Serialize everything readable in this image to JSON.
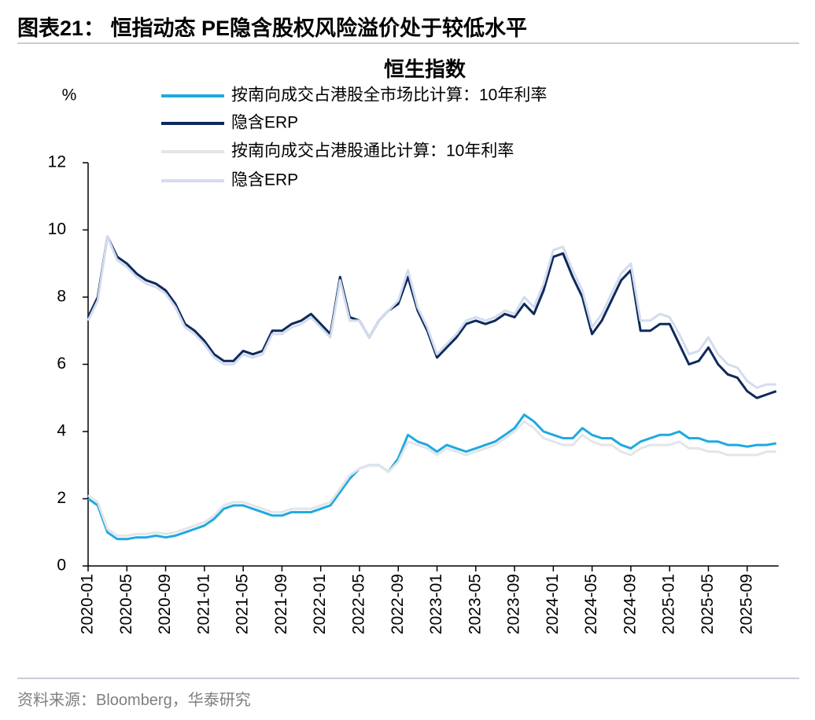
{
  "title": "图表21：  恒指动态 PE隐含股权风险溢价处于较低水平",
  "source": "资料来源：Bloomberg，华泰研究",
  "chart_data": {
    "type": "line",
    "title": "恒生指数",
    "y_label": "%",
    "x": [
      "2020-01",
      "2020-02",
      "2020-03",
      "2020-04",
      "2020-05",
      "2020-06",
      "2020-07",
      "2020-08",
      "2020-09",
      "2020-10",
      "2020-11",
      "2020-12",
      "2021-01",
      "2021-02",
      "2021-03",
      "2021-04",
      "2021-05",
      "2021-06",
      "2021-07",
      "2021-08",
      "2021-09",
      "2021-10",
      "2021-11",
      "2021-12",
      "2022-01",
      "2022-02",
      "2022-03",
      "2022-04",
      "2022-05",
      "2022-06",
      "2022-07",
      "2022-08",
      "2022-09",
      "2022-10",
      "2022-11",
      "2022-12",
      "2023-01",
      "2023-02",
      "2023-03",
      "2023-04",
      "2023-05",
      "2023-06",
      "2023-07",
      "2023-08",
      "2023-09",
      "2023-10",
      "2023-11",
      "2023-12",
      "2024-01",
      "2024-02",
      "2024-03",
      "2024-04",
      "2024-05",
      "2024-06",
      "2024-07",
      "2024-08",
      "2024-09",
      "2024-10",
      "2024-11",
      "2024-12",
      "2025-01",
      "2025-02",
      "2025-03",
      "2025-04",
      "2025-05",
      "2025-06",
      "2025-07",
      "2025-08",
      "2025-09",
      "2025-10",
      "2025-11",
      "2025-12"
    ],
    "xticks": [
      "2020-01",
      "2020-05",
      "2020-09",
      "2021-01",
      "2021-05",
      "2021-09",
      "2022-01",
      "2022-05",
      "2022-09",
      "2023-01",
      "2023-05",
      "2023-09",
      "2024-01",
      "2024-05",
      "2024-09",
      "2025-01",
      "2025-05",
      "2025-09"
    ],
    "ylim": [
      0,
      12
    ],
    "yticks": [
      0,
      2,
      4,
      6,
      8,
      10,
      12
    ],
    "grid": false,
    "series": [
      {
        "name": "按南向成交占港股全市场比计算：10年利率",
        "color": "#1fa9e1",
        "values": [
          2.0,
          1.8,
          1.0,
          0.8,
          0.8,
          0.85,
          0.85,
          0.9,
          0.85,
          0.9,
          1.0,
          1.1,
          1.2,
          1.4,
          1.7,
          1.8,
          1.8,
          1.7,
          1.6,
          1.5,
          1.5,
          1.6,
          1.6,
          1.6,
          1.7,
          1.8,
          2.2,
          2.6,
          2.9,
          3.0,
          3.0,
          2.8,
          3.2,
          3.9,
          3.7,
          3.6,
          3.4,
          3.6,
          3.5,
          3.4,
          3.5,
          3.6,
          3.7,
          3.9,
          4.1,
          4.5,
          4.3,
          4.0,
          3.9,
          3.8,
          3.8,
          4.1,
          3.9,
          3.8,
          3.8,
          3.6,
          3.5,
          3.7,
          3.8,
          3.9,
          3.9,
          4.0,
          3.8,
          3.8,
          3.7,
          3.7,
          3.6,
          3.6,
          3.55,
          3.6,
          3.6,
          3.65
        ]
      },
      {
        "name": "隐含ERP",
        "color": "#0d2a5c",
        "values": [
          7.4,
          8.0,
          9.8,
          9.2,
          9.0,
          8.7,
          8.5,
          8.4,
          8.2,
          7.8,
          7.2,
          7.0,
          6.7,
          6.3,
          6.1,
          6.1,
          6.4,
          6.3,
          6.4,
          7.0,
          7.0,
          7.2,
          7.3,
          7.5,
          7.2,
          6.9,
          8.6,
          7.4,
          7.3,
          6.8,
          7.3,
          7.6,
          7.8,
          8.6,
          7.6,
          7.0,
          6.2,
          6.5,
          6.8,
          7.2,
          7.3,
          7.2,
          7.3,
          7.5,
          7.4,
          7.8,
          7.5,
          8.2,
          9.2,
          9.3,
          8.6,
          8.0,
          6.9,
          7.3,
          7.9,
          8.5,
          8.8,
          7.0,
          7.0,
          7.2,
          7.2,
          6.6,
          6.0,
          6.1,
          6.5,
          6.0,
          5.7,
          5.6,
          5.2,
          5.0,
          5.1,
          5.2
        ]
      },
      {
        "name": "按南向成交占港股通比计算：10年利率",
        "color": "#e3e5e8",
        "values": [
          2.1,
          1.9,
          1.1,
          0.9,
          0.9,
          0.95,
          0.95,
          1.0,
          0.95,
          1.0,
          1.1,
          1.2,
          1.3,
          1.5,
          1.8,
          1.9,
          1.9,
          1.8,
          1.7,
          1.6,
          1.6,
          1.7,
          1.7,
          1.7,
          1.8,
          1.9,
          2.3,
          2.7,
          2.9,
          3.0,
          3.0,
          2.8,
          3.1,
          3.7,
          3.6,
          3.5,
          3.3,
          3.5,
          3.4,
          3.3,
          3.4,
          3.5,
          3.6,
          3.8,
          4.0,
          4.3,
          4.1,
          3.8,
          3.7,
          3.6,
          3.6,
          3.9,
          3.7,
          3.6,
          3.6,
          3.4,
          3.3,
          3.5,
          3.6,
          3.6,
          3.6,
          3.7,
          3.5,
          3.5,
          3.4,
          3.4,
          3.3,
          3.3,
          3.3,
          3.3,
          3.4,
          3.4
        ]
      },
      {
        "name": "隐含ERP",
        "color": "#d3dcef",
        "values": [
          7.3,
          7.9,
          9.8,
          9.1,
          8.9,
          8.6,
          8.4,
          8.3,
          8.1,
          7.7,
          7.1,
          6.9,
          6.6,
          6.2,
          6.0,
          6.0,
          6.3,
          6.2,
          6.3,
          6.9,
          6.9,
          7.1,
          7.2,
          7.4,
          7.1,
          6.8,
          8.5,
          7.3,
          7.3,
          6.8,
          7.3,
          7.6,
          7.9,
          8.8,
          7.7,
          7.1,
          6.3,
          6.6,
          6.9,
          7.3,
          7.4,
          7.3,
          7.4,
          7.6,
          7.5,
          8.0,
          7.7,
          8.4,
          9.4,
          9.5,
          8.8,
          8.2,
          7.1,
          7.5,
          8.1,
          8.7,
          9.0,
          7.3,
          7.3,
          7.5,
          7.4,
          6.9,
          6.3,
          6.4,
          6.8,
          6.3,
          6.0,
          5.9,
          5.5,
          5.3,
          5.4,
          5.4
        ]
      }
    ]
  }
}
